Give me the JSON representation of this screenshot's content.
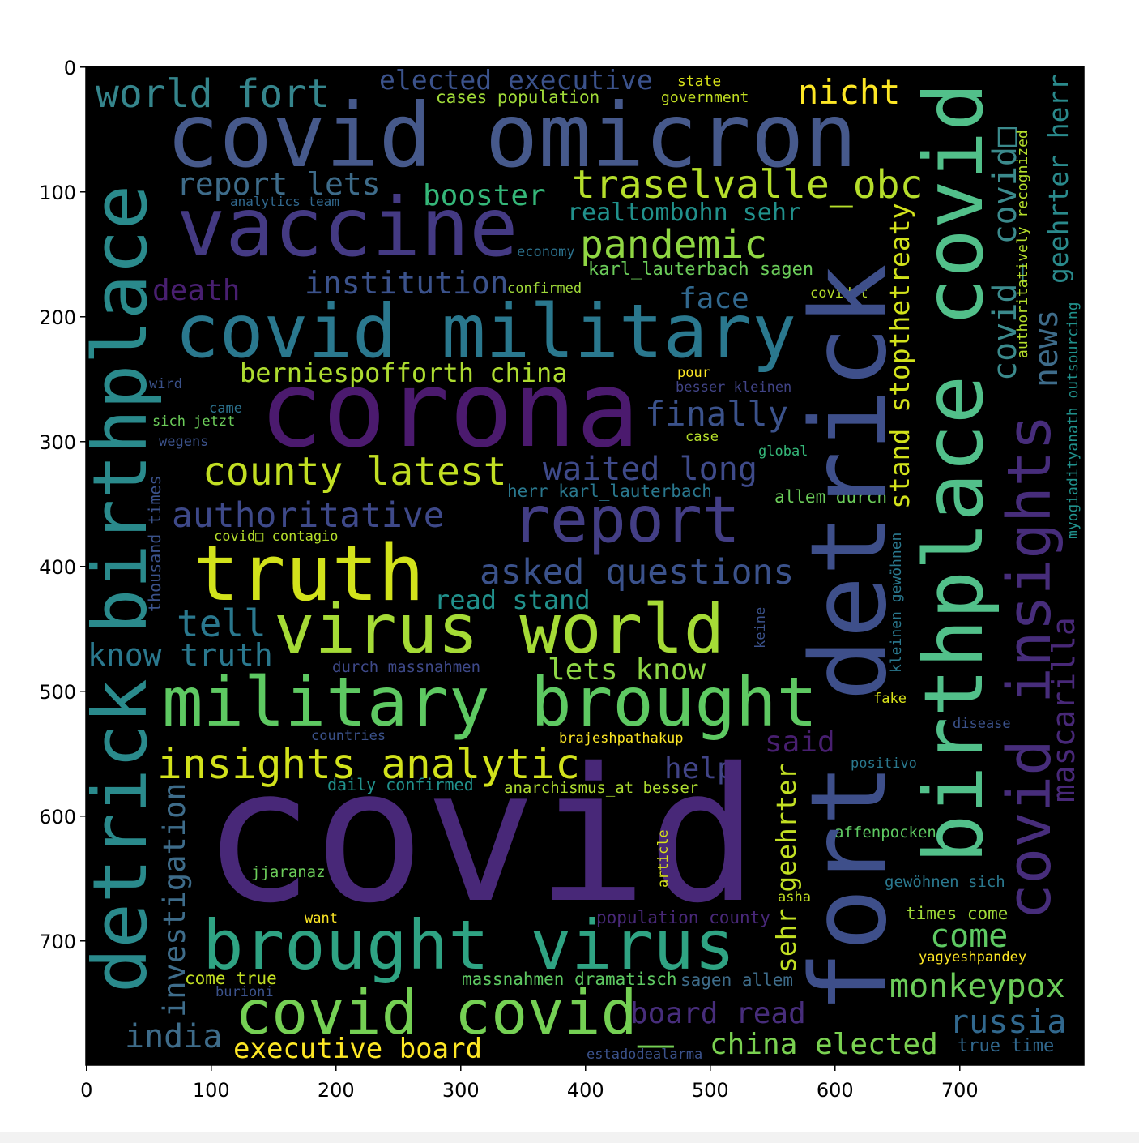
{
  "chart_data": {
    "type": "wordcloud",
    "words": [
      "world fort",
      "elected executive",
      "state",
      "cases population",
      "government",
      "nicht",
      "covid omicron",
      "report lets",
      "analytics team",
      "booster",
      "traselvalle_obc",
      "vaccine",
      "realtombohn sehr",
      "pandemic",
      "economy",
      "karl_lauterbach sagen",
      "death",
      "institution",
      "confirmed",
      "face",
      "covid military",
      "covidrt",
      "berniespofforth china",
      "wird",
      "pour",
      "besser kleinen",
      "corona",
      "finally",
      "came",
      "sich jetzt",
      "case",
      "wegens",
      "global",
      "county latest",
      "waited long",
      "herr karl_lauterbach",
      "allem durch",
      "report",
      "authoritative",
      "covid□ contagio",
      "truth",
      "asked questions",
      "read stand",
      "tell",
      "virus world",
      "know truth",
      "lets know",
      "durch massnahmen",
      "military brought",
      "fake",
      "said",
      "disease",
      "countries",
      "brajeshpathakup",
      "insights analytic",
      "help",
      "positivo",
      "daily confirmed",
      "anarchismus_at besser",
      "covid",
      "affenpocken",
      "jjaranaz",
      "gewöhnen sich",
      "asha",
      "want",
      "population county",
      "times come",
      "come",
      "brought virus",
      "yagyeshpandey",
      "come true",
      "massnahmen dramatisch",
      "sagen allem",
      "burioni",
      "monkeypox",
      "covid covid_",
      "board read",
      "russia",
      "india",
      "executive board",
      "china elected",
      "true time",
      "estadodealarma",
      "detrick birthplace",
      "fort detrick",
      "birthplace covid",
      "covid insights",
      "covid_ covid□",
      "geehrter herr",
      "news",
      "stand stopthetreaty",
      "authoritatively recognized",
      "mascarilla",
      "myogiadityanath outsourcing",
      "sehr geehrter",
      "investigation",
      "thousand times",
      "keine",
      "kleinen gewöhnen",
      "article"
    ],
    "xlim": [
      -0.5,
      799.5
    ],
    "ylim": [
      799.5,
      -0.5
    ],
    "xticks": [
      0,
      100,
      200,
      300,
      400,
      500,
      600,
      700
    ],
    "yticks": [
      0,
      100,
      200,
      300,
      400,
      500,
      600,
      700
    ]
  }
}
